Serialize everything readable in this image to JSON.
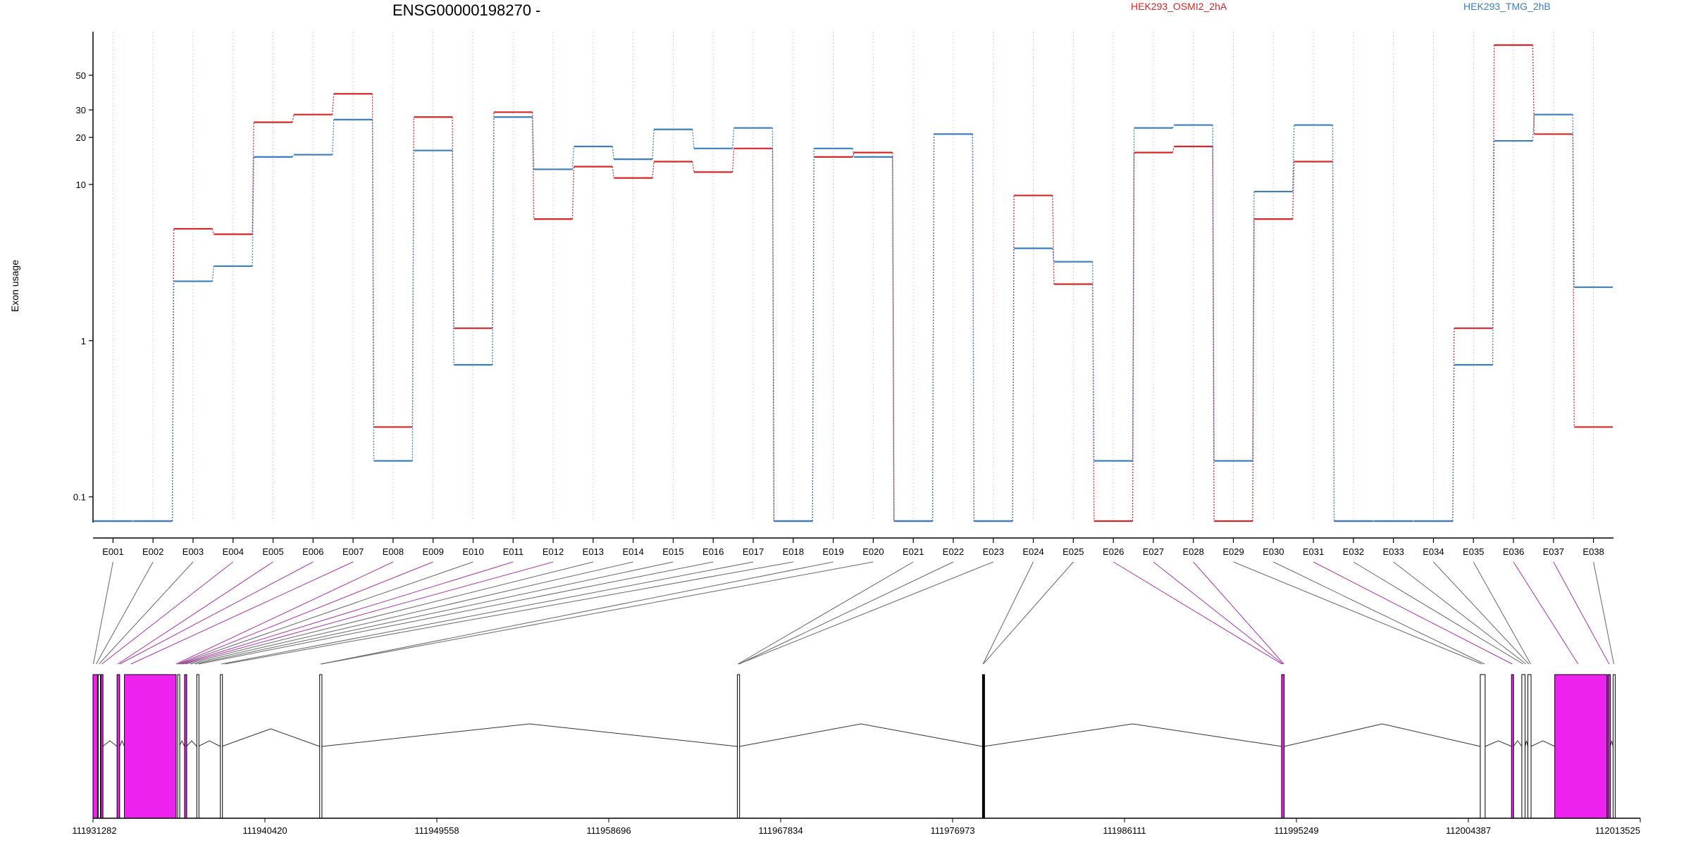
{
  "chart_data": {
    "type": "line",
    "title": "ENSG00000198270 -",
    "ylabel": "Exon usage",
    "xlabel": "",
    "y_scale": "log",
    "yticks": [
      "0.1",
      "1",
      "10",
      "20",
      "30",
      "50"
    ],
    "ylim": [
      0.07,
      95
    ],
    "grid": true,
    "legend_position": "top",
    "categories": [
      "E001",
      "E002",
      "E003",
      "E004",
      "E005",
      "E006",
      "E007",
      "E008",
      "E009",
      "E010",
      "E011",
      "E012",
      "E013",
      "E014",
      "E015",
      "E016",
      "E017",
      "E018",
      "E019",
      "E020",
      "E021",
      "E022",
      "E023",
      "E024",
      "E025",
      "E026",
      "E027",
      "E028",
      "E029",
      "E030",
      "E031",
      "E032",
      "E033",
      "E034",
      "E035",
      "E036",
      "E037",
      "E038"
    ],
    "series": [
      {
        "name": "HEK293_OSMI2_2hA",
        "color": "#d62728",
        "values": [
          0.07,
          0.07,
          5.2,
          4.8,
          25,
          28,
          38,
          0.28,
          27,
          1.2,
          29,
          6,
          13,
          11,
          14,
          12,
          17,
          0.07,
          15,
          16,
          0.07,
          21,
          0.07,
          8.5,
          2.3,
          0.07,
          16,
          17.5,
          0.07,
          6,
          14,
          0.07,
          0.07,
          0.07,
          1.2,
          78,
          21,
          0.28
        ]
      },
      {
        "name": "HEK293_TMG_2hB",
        "color": "#3a7fc2",
        "values": [
          0.07,
          0.07,
          2.4,
          3.0,
          15,
          15.5,
          26,
          0.17,
          16.5,
          0.7,
          27,
          12.5,
          17.5,
          14.5,
          22.5,
          17,
          23,
          0.07,
          17,
          15,
          0.07,
          21,
          0.07,
          3.9,
          3.2,
          0.17,
          23,
          24,
          0.17,
          9,
          24,
          0.07,
          0.07,
          0.07,
          0.7,
          19,
          28,
          2.2
        ]
      }
    ],
    "genomic_axis": {
      "ticks": [
        "111931282",
        "111940420",
        "111949558",
        "111958696",
        "111967834",
        "111976973",
        "111986111",
        "111995249",
        "112004387",
        "112013525"
      ],
      "start": 111931282,
      "end": 112013525
    }
  },
  "exon_blocks": [
    {
      "start": 111931282,
      "end": 111931520,
      "fill": "#ee22ee"
    },
    {
      "start": 111931560,
      "end": 111931650,
      "fill": "#ffffff"
    },
    {
      "start": 111931700,
      "end": 111931800,
      "fill": "#ee22ee"
    },
    {
      "start": 111932560,
      "end": 111932700,
      "fill": "#ee22ee"
    },
    {
      "start": 111932950,
      "end": 111935700,
      "fill": "#ee22ee"
    },
    {
      "start": 111935780,
      "end": 111935860,
      "fill": "#ffffff"
    },
    {
      "start": 111936150,
      "end": 111936250,
      "fill": "#ee22ee"
    },
    {
      "start": 111936800,
      "end": 111936880,
      "fill": "#ffffff"
    },
    {
      "start": 111938050,
      "end": 111938130,
      "fill": "#ffffff"
    },
    {
      "start": 111943330,
      "end": 111943450,
      "fill": "#ffffff"
    },
    {
      "start": 111965530,
      "end": 111965650,
      "fill": "#ffffff"
    },
    {
      "start": 111978560,
      "end": 111978620,
      "fill": "#000000"
    },
    {
      "start": 111994460,
      "end": 111994600,
      "fill": "#ee22ee"
    },
    {
      "start": 112005020,
      "end": 112005280,
      "fill": "#ffffff"
    },
    {
      "start": 112006680,
      "end": 112006780,
      "fill": "#ee22ee"
    },
    {
      "start": 112007230,
      "end": 112007400,
      "fill": "#ffffff"
    },
    {
      "start": 112007550,
      "end": 112007720,
      "fill": "#ffffff"
    },
    {
      "start": 112008980,
      "end": 112011760,
      "fill": "#ee22ee"
    },
    {
      "start": 112011810,
      "end": 112011930,
      "fill": "#ee22ee"
    },
    {
      "start": 112012080,
      "end": 112012160,
      "fill": "#ffffff"
    }
  ],
  "exon_links": [
    {
      "exon": 0,
      "pos": 111931300,
      "color": "#666666"
    },
    {
      "exon": 1,
      "pos": 111931450,
      "color": "#666666"
    },
    {
      "exon": 2,
      "pos": 111931600,
      "color": "#666666"
    },
    {
      "exon": 3,
      "pos": 111931750,
      "color": "#aa33aa"
    },
    {
      "exon": 4,
      "pos": 111932600,
      "color": "#aa33aa"
    },
    {
      "exon": 5,
      "pos": 111932700,
      "color": "#aa33aa"
    },
    {
      "exon": 6,
      "pos": 111933300,
      "color": "#aa33aa"
    },
    {
      "exon": 7,
      "pos": 111935700,
      "color": "#aa33aa"
    },
    {
      "exon": 8,
      "pos": 111935790,
      "color": "#aa33aa"
    },
    {
      "exon": 9,
      "pos": 111935850,
      "color": "#666666"
    },
    {
      "exon": 10,
      "pos": 111935950,
      "color": "#aa33aa"
    },
    {
      "exon": 11,
      "pos": 111936050,
      "color": "#aa33aa"
    },
    {
      "exon": 12,
      "pos": 111936200,
      "color": "#666666"
    },
    {
      "exon": 13,
      "pos": 111936450,
      "color": "#666666"
    },
    {
      "exon": 14,
      "pos": 111936700,
      "color": "#666666"
    },
    {
      "exon": 15,
      "pos": 111936900,
      "color": "#666666"
    },
    {
      "exon": 16,
      "pos": 111938100,
      "color": "#666666"
    },
    {
      "exon": 17,
      "pos": 111938300,
      "color": "#666666"
    },
    {
      "exon": 18,
      "pos": 111943380,
      "color": "#666666"
    },
    {
      "exon": 19,
      "pos": 111943420,
      "color": "#666666"
    },
    {
      "exon": 20,
      "pos": 111965560,
      "color": "#666666"
    },
    {
      "exon": 21,
      "pos": 111965620,
      "color": "#666666"
    },
    {
      "exon": 22,
      "pos": 111965600,
      "color": "#666666"
    },
    {
      "exon": 23,
      "pos": 111978590,
      "color": "#666666"
    },
    {
      "exon": 24,
      "pos": 111978600,
      "color": "#666666"
    },
    {
      "exon": 25,
      "pos": 111994480,
      "color": "#aa33aa"
    },
    {
      "exon": 26,
      "pos": 111994530,
      "color": "#aa33aa"
    },
    {
      "exon": 27,
      "pos": 111994580,
      "color": "#aa33aa"
    },
    {
      "exon": 28,
      "pos": 112005100,
      "color": "#666666"
    },
    {
      "exon": 29,
      "pos": 112005250,
      "color": "#666666"
    },
    {
      "exon": 30,
      "pos": 112006720,
      "color": "#aa33aa"
    },
    {
      "exon": 31,
      "pos": 112007300,
      "color": "#666666"
    },
    {
      "exon": 32,
      "pos": 112007450,
      "color": "#666666"
    },
    {
      "exon": 33,
      "pos": 112007600,
      "color": "#666666"
    },
    {
      "exon": 34,
      "pos": 112007700,
      "color": "#666666"
    },
    {
      "exon": 35,
      "pos": 112010220,
      "color": "#aa33aa"
    },
    {
      "exon": 36,
      "pos": 112011870,
      "color": "#aa33aa"
    },
    {
      "exon": 37,
      "pos": 112012120,
      "color": "#666666"
    }
  ]
}
